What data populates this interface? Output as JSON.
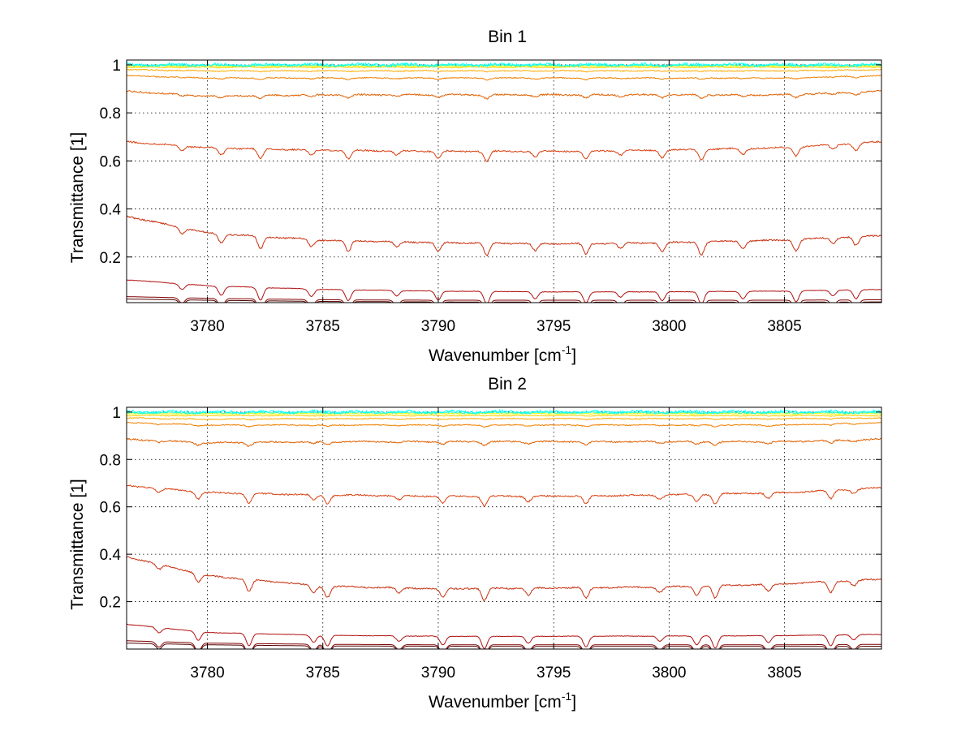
{
  "chart_data": [
    {
      "type": "line",
      "title": "Bin 1",
      "xlabel": "Wavenumber [cm",
      "xlabel_sup": "-1",
      "xlabel_end": "]",
      "ylabel": "Transmittance [1]",
      "xlim": [
        3776.5,
        3809.2
      ],
      "ylim": [
        0.01,
        1.02
      ],
      "grid": true,
      "x_ticks": [
        "3780",
        "3785",
        "3790",
        "3795",
        "3800",
        "3805"
      ],
      "x_tick_values": [
        3780,
        3785,
        3790,
        3795,
        3800,
        3805
      ],
      "y_ticks": [
        "0.2",
        "0.4",
        "0.6",
        "0.8",
        "1"
      ],
      "y_tick_values": [
        0.2,
        0.4,
        0.6,
        0.8,
        1.0
      ],
      "x": [
        3776.5,
        3780,
        3785,
        3790,
        3795,
        3800,
        3805,
        3809.2
      ],
      "absorption_lines": [
        3778.9,
        3780.6,
        3782.3,
        3784.5,
        3786.1,
        3788.2,
        3790.0,
        3792.1,
        3794.2,
        3796.4,
        3797.9,
        3799.7,
        3801.4,
        3803.2,
        3805.5,
        3807.1,
        3808.1
      ],
      "series": [
        {
          "color": "#00ffff",
          "values": [
            1.0,
            1.0,
            1.0,
            1.0,
            1.0,
            1.0,
            1.0,
            1.0
          ],
          "noise": 0.006
        },
        {
          "color": "#40ffb0",
          "values": [
            0.998,
            0.998,
            0.998,
            0.998,
            0.998,
            0.998,
            0.998,
            0.998
          ],
          "noise": 0.003
        },
        {
          "color": "#ffff00",
          "values": [
            0.995,
            0.995,
            0.995,
            0.995,
            0.995,
            0.995,
            0.995,
            0.995
          ],
          "noise": 0.002
        },
        {
          "color": "#ffd000",
          "values": [
            0.99,
            0.99,
            0.99,
            0.99,
            0.99,
            0.99,
            0.99,
            0.99
          ],
          "noise": 0.002
        },
        {
          "color": "#ffaa00",
          "values": [
            0.98,
            0.975,
            0.975,
            0.975,
            0.975,
            0.975,
            0.975,
            0.98
          ],
          "noise": 0.002
        },
        {
          "color": "#f08000",
          "values": [
            0.955,
            0.945,
            0.945,
            0.945,
            0.945,
            0.945,
            0.945,
            0.955
          ],
          "noise": 0.002
        },
        {
          "color": "#e06000",
          "values": [
            0.89,
            0.87,
            0.875,
            0.875,
            0.875,
            0.875,
            0.875,
            0.89
          ],
          "noise": 0.003
        },
        {
          "color": "#d84010",
          "values": [
            0.68,
            0.655,
            0.645,
            0.64,
            0.64,
            0.645,
            0.655,
            0.68
          ],
          "noise": 0.003
        },
        {
          "color": "#c83010",
          "values": [
            0.37,
            0.3,
            0.27,
            0.26,
            0.255,
            0.26,
            0.27,
            0.29
          ],
          "noise": 0.003
        },
        {
          "color": "#b01010",
          "values": [
            0.105,
            0.08,
            0.065,
            0.058,
            0.055,
            0.055,
            0.058,
            0.065
          ],
          "noise": 0.001
        },
        {
          "color": "#800000",
          "values": [
            0.035,
            0.028,
            0.022,
            0.02,
            0.02,
            0.02,
            0.02,
            0.022
          ],
          "noise": 0.0
        },
        {
          "color": "#500000",
          "values": [
            0.025,
            0.02,
            0.015,
            0.013,
            0.012,
            0.012,
            0.012,
            0.013
          ],
          "noise": 0.0
        }
      ]
    },
    {
      "type": "line",
      "title": "Bin 2",
      "xlabel": "Wavenumber [cm",
      "xlabel_sup": "-1",
      "xlabel_end": "]",
      "ylabel": "Transmittance [1]",
      "xlim": [
        3776.5,
        3809.2
      ],
      "ylim": [
        0.0,
        1.02
      ],
      "grid": true,
      "x_ticks": [
        "3780",
        "3785",
        "3790",
        "3795",
        "3800",
        "3805"
      ],
      "x_tick_values": [
        3780,
        3785,
        3790,
        3795,
        3800,
        3805
      ],
      "y_ticks": [
        "0.2",
        "0.4",
        "0.6",
        "0.8",
        "1"
      ],
      "y_tick_values": [
        0.2,
        0.4,
        0.6,
        0.8,
        1.0
      ],
      "x": [
        3776.5,
        3780,
        3785,
        3790,
        3795,
        3800,
        3805,
        3809.2
      ],
      "absorption_lines": [
        3777.9,
        3779.6,
        3781.8,
        3784.6,
        3785.2,
        3788.3,
        3790.2,
        3792.0,
        3793.9,
        3796.4,
        3799.6,
        3801.2,
        3802.0,
        3804.3,
        3807.0,
        3808.0
      ],
      "series": [
        {
          "color": "#00ffff",
          "values": [
            1.0,
            1.0,
            1.0,
            1.0,
            1.0,
            1.0,
            1.0,
            1.0
          ],
          "noise": 0.006
        },
        {
          "color": "#40ffb0",
          "values": [
            0.997,
            0.997,
            0.997,
            0.997,
            0.997,
            0.997,
            0.997,
            0.997
          ],
          "noise": 0.003
        },
        {
          "color": "#ffff00",
          "values": [
            0.993,
            0.993,
            0.993,
            0.993,
            0.993,
            0.993,
            0.993,
            0.993
          ],
          "noise": 0.002
        },
        {
          "color": "#ffd000",
          "values": [
            0.985,
            0.985,
            0.985,
            0.985,
            0.985,
            0.985,
            0.985,
            0.985
          ],
          "noise": 0.002
        },
        {
          "color": "#ffaa00",
          "values": [
            0.975,
            0.97,
            0.972,
            0.972,
            0.972,
            0.972,
            0.972,
            0.975
          ],
          "noise": 0.002
        },
        {
          "color": "#f08000",
          "values": [
            0.955,
            0.945,
            0.945,
            0.945,
            0.945,
            0.945,
            0.945,
            0.955
          ],
          "noise": 0.002
        },
        {
          "color": "#e06000",
          "values": [
            0.885,
            0.87,
            0.875,
            0.875,
            0.875,
            0.875,
            0.875,
            0.885
          ],
          "noise": 0.003
        },
        {
          "color": "#d84010",
          "values": [
            0.69,
            0.66,
            0.65,
            0.645,
            0.645,
            0.65,
            0.66,
            0.68
          ],
          "noise": 0.003
        },
        {
          "color": "#c83010",
          "values": [
            0.39,
            0.31,
            0.265,
            0.255,
            0.258,
            0.262,
            0.275,
            0.295
          ],
          "noise": 0.003
        },
        {
          "color": "#b01010",
          "values": [
            0.105,
            0.07,
            0.058,
            0.054,
            0.054,
            0.055,
            0.057,
            0.062
          ],
          "noise": 0.001
        },
        {
          "color": "#800000",
          "values": [
            0.035,
            0.025,
            0.02,
            0.018,
            0.018,
            0.018,
            0.018,
            0.02
          ],
          "noise": 0.0
        },
        {
          "color": "#500000",
          "values": [
            0.025,
            0.018,
            0.013,
            0.012,
            0.011,
            0.011,
            0.011,
            0.012
          ],
          "noise": 0.0
        }
      ]
    }
  ]
}
